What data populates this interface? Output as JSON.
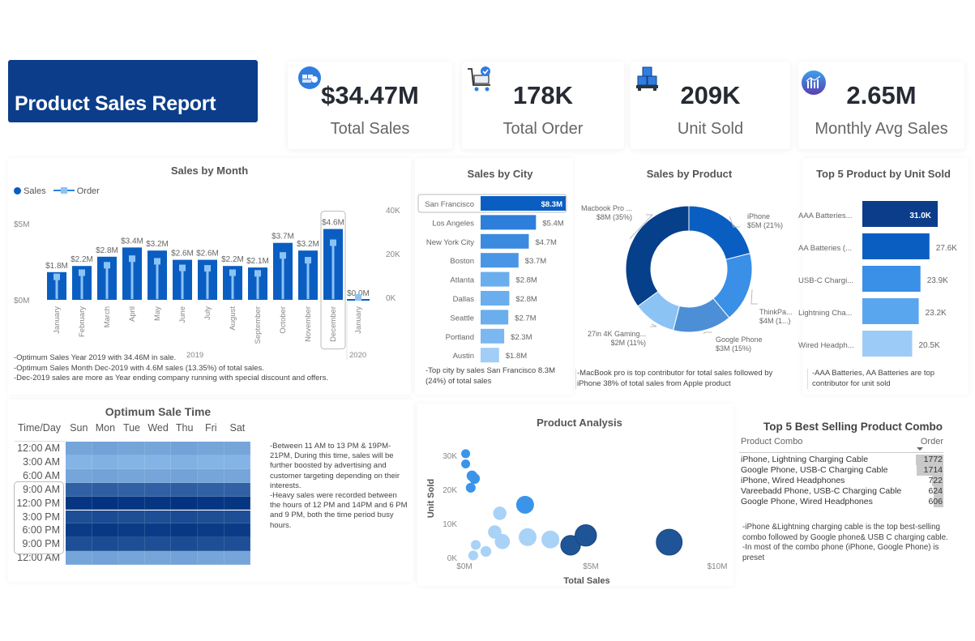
{
  "header": {
    "title": "Product Sales Report"
  },
  "kpis": [
    {
      "value": "$34.47M",
      "label": "Total Sales",
      "icon": "money-stack-icon"
    },
    {
      "value": "178K",
      "label": "Total  Order",
      "icon": "shopping-cart-check-icon"
    },
    {
      "value": "209K",
      "label": "Unit Sold",
      "icon": "boxes-pallet-icon"
    },
    {
      "value": "2.65M",
      "label": "Monthly Avg Sales",
      "icon": "bar-chart-circle-icon"
    }
  ],
  "colors": {
    "navy": "#0b3d8a",
    "primary": "#0a5ec2",
    "mid": "#3a8fe6",
    "light": "#8cc3f5",
    "pale": "#b5d8fa"
  },
  "sales_by_month": {
    "title": "Sales by Month",
    "legend": {
      "sales": "Sales",
      "order": "Order"
    },
    "notes": [
      "-Optimum Sales Year 2019 with 34.46M in sale.",
      "-Optimum Sales Month Dec-2019 with 4.6M sales (13.35%) of total sales.",
      "-Dec-2019 sales are more as Year ending company running with special discount and offers."
    ]
  },
  "sales_by_city": {
    "title": "Sales by City",
    "note": "-Top city by sales San Francisco 8.3M (24%) of total sales"
  },
  "sales_by_product": {
    "title": "Sales by Product",
    "note": "-MacBook pro is top contributor for total sales followed by iPhone 38% of total sales from Apple product"
  },
  "top5_units": {
    "title": "Top 5 Product by Unit Sold",
    "note": "-AAA Batteries, AA Batteries are top contributor for unit sold"
  },
  "heatmap": {
    "title": "Optimum Sale Time",
    "corner": "Time/Day",
    "note": "-Between 11 AM to 13 PM & 19PM-21PM, During this time, sales will be further boosted by advertising and customer targeting depending on their interests.\n-Heavy sales were recorded between the hours of 12 PM and 14PM and 6 PM and 9 PM, both the time period busy hours."
  },
  "product_analysis": {
    "title": "Product Analysis"
  },
  "combo_table": {
    "title": "Top 5 Best Selling Product Combo",
    "columns": [
      "Product Combo",
      "Order"
    ],
    "rows": [
      {
        "combo": "iPhone, Lightning Charging Cable",
        "order": "1772"
      },
      {
        "combo": "Google Phone, USB-C Charging Cable",
        "order": "1714"
      },
      {
        "combo": "iPhone, Wired Headphones",
        "order": "722"
      },
      {
        "combo": "Vareebadd Phone, USB-C Charging Cable",
        "order": "624"
      },
      {
        "combo": "Google Phone, Wired Headphones",
        "order": "606"
      }
    ],
    "note": "-iPhone &Lightning charging cable is the top best-selling combo followed by Google phone& USB C charging cable.\n-In most of the combo phone (iPhone, Google Phone) is preset"
  },
  "chart_data": [
    {
      "id": "sales_by_month",
      "type": "bar",
      "title": "Sales by Month",
      "categories": [
        "January",
        "February",
        "March",
        "April",
        "May",
        "June",
        "July",
        "August",
        "September",
        "October",
        "November",
        "December",
        "January"
      ],
      "year_groups": [
        {
          "label": "2019",
          "count": 12
        },
        {
          "label": "2020",
          "count": 1
        }
      ],
      "series": [
        {
          "name": "Sales",
          "type": "bar",
          "axis": "left",
          "values": [
            1.8,
            2.2,
            2.8,
            3.4,
            3.2,
            2.6,
            2.6,
            2.2,
            2.1,
            3.7,
            3.2,
            4.6,
            0.0
          ],
          "labels": [
            "$1.8M",
            "$2.2M",
            "$2.8M",
            "$3.4M",
            "$3.2M",
            "$2.6M",
            "$2.6M",
            "$2.2M",
            "$2.1M",
            "$3.7M",
            "$3.2M",
            "$4.6M",
            "$0.0M"
          ]
        },
        {
          "name": "Order",
          "type": "line",
          "axis": "right",
          "values": [
            9400,
            11300,
            14700,
            17700,
            16500,
            13500,
            13300,
            11300,
            11000,
            19200,
            17000,
            25000,
            0
          ]
        }
      ],
      "yleft": {
        "ticks": [
          "$0M",
          "$5M"
        ],
        "range": [
          0,
          5
        ]
      },
      "yright": {
        "ticks": [
          "0K",
          "20K",
          "40K"
        ],
        "range": [
          0,
          40000
        ]
      },
      "highlight": "December"
    },
    {
      "id": "sales_by_city",
      "type": "bar",
      "orientation": "horizontal",
      "title": "Sales by City",
      "categories": [
        "San Francisco",
        "Los Angeles",
        "New York City",
        "Boston",
        "Atlanta",
        "Dallas",
        "Seattle",
        "Portland",
        "Austin"
      ],
      "values": [
        8.3,
        5.4,
        4.7,
        3.7,
        2.8,
        2.8,
        2.7,
        2.3,
        1.8
      ],
      "labels": [
        "$8.3M",
        "$5.4M",
        "$4.7M",
        "$3.7M",
        "$2.8M",
        "$2.8M",
        "$2.7M",
        "$2.3M",
        "$1.8M"
      ],
      "highlight": "San Francisco"
    },
    {
      "id": "sales_by_product",
      "type": "pie",
      "variant": "donut",
      "title": "Sales by Product",
      "slices": [
        {
          "label": "iPhone",
          "value_label": "$5M (21%)",
          "pct": 21,
          "color": "#0a5ec2"
        },
        {
          "label": "ThinkPa...",
          "value_label": "$4M (1...)",
          "pct": 18,
          "color": "#3a8fe6"
        },
        {
          "label": "Google Phone",
          "value_label": "$3M (15%)",
          "pct": 15,
          "color": "#4d8fd6"
        },
        {
          "label": "27in 4K Gaming...",
          "value_label": "$2M (11%)",
          "pct": 11,
          "color": "#8cc3f5"
        },
        {
          "label": "Macbook Pro ...",
          "value_label": "$8M (35%)",
          "pct": 35,
          "color": "#063f8a"
        }
      ]
    },
    {
      "id": "top5_units",
      "type": "bar",
      "orientation": "horizontal",
      "title": "Top 5 Product by Unit Sold",
      "categories": [
        "AAA Batteries...",
        "AA Batteries (...",
        "USB-C Chargi...",
        "Lightning Cha...",
        "Wired Headph..."
      ],
      "values": [
        31.0,
        27.6,
        23.9,
        23.2,
        20.5
      ],
      "labels": [
        "31.0K",
        "27.6K",
        "23.9K",
        "23.2K",
        "20.5K"
      ],
      "colors": [
        "#0b3d8a",
        "#0a5ec2",
        "#3a8fe6",
        "#5aa6ee",
        "#9ccbf7"
      ]
    },
    {
      "id": "heatmap",
      "type": "heatmap",
      "title": "Optimum Sale Time",
      "x": [
        "Sun",
        "Mon",
        "Tue",
        "Wed",
        "Thu",
        "Fri",
        "Sat"
      ],
      "y": [
        "12:00 AM",
        "3:00 AM",
        "6:00 AM",
        "9:00 AM",
        "12:00 PM",
        "3:00 PM",
        "6:00 PM",
        "9:00 PM",
        "12:00 AM"
      ],
      "intensity": [
        0.25,
        0.15,
        0.25,
        0.7,
        0.98,
        0.82,
        0.95,
        0.82,
        0.25
      ]
    },
    {
      "id": "product_analysis",
      "type": "scatter",
      "title": "Product Analysis",
      "xlabel": "Total Sales",
      "ylabel": "Unit Sold",
      "xticks": [
        "$0M",
        "$5M",
        "$10M"
      ],
      "xlim": [
        0,
        10
      ],
      "yticks": [
        "0K",
        "10K",
        "20K",
        "30K"
      ],
      "ylim": [
        0,
        30000
      ],
      "points": [
        {
          "x": 0.05,
          "y": 30500,
          "size": 1,
          "tone": "mid"
        },
        {
          "x": 0.05,
          "y": 27500,
          "size": 1,
          "tone": "mid"
        },
        {
          "x": 0.3,
          "y": 24000,
          "size": 1.2,
          "tone": "mid"
        },
        {
          "x": 0.4,
          "y": 23200,
          "size": 1.2,
          "tone": "mid"
        },
        {
          "x": 0.25,
          "y": 20500,
          "size": 1.1,
          "tone": "mid"
        },
        {
          "x": 2.4,
          "y": 15500,
          "size": 2.0,
          "tone": "mid"
        },
        {
          "x": 1.4,
          "y": 13000,
          "size": 1.5,
          "tone": "light"
        },
        {
          "x": 1.2,
          "y": 7500,
          "size": 1.5,
          "tone": "light"
        },
        {
          "x": 1.5,
          "y": 4700,
          "size": 1.7,
          "tone": "light"
        },
        {
          "x": 2.5,
          "y": 6000,
          "size": 2.0,
          "tone": "light"
        },
        {
          "x": 3.4,
          "y": 5300,
          "size": 2.0,
          "tone": "light"
        },
        {
          "x": 0.45,
          "y": 3700,
          "size": 1.1,
          "tone": "light"
        },
        {
          "x": 0.85,
          "y": 1800,
          "size": 1.2,
          "tone": "light"
        },
        {
          "x": 0.35,
          "y": 600,
          "size": 1.1,
          "tone": "light"
        },
        {
          "x": 4.2,
          "y": 3600,
          "size": 2.2,
          "tone": "dark"
        },
        {
          "x": 4.8,
          "y": 6500,
          "size": 2.4,
          "tone": "dark"
        },
        {
          "x": 8.1,
          "y": 4500,
          "size": 2.9,
          "tone": "dark"
        }
      ]
    }
  ]
}
